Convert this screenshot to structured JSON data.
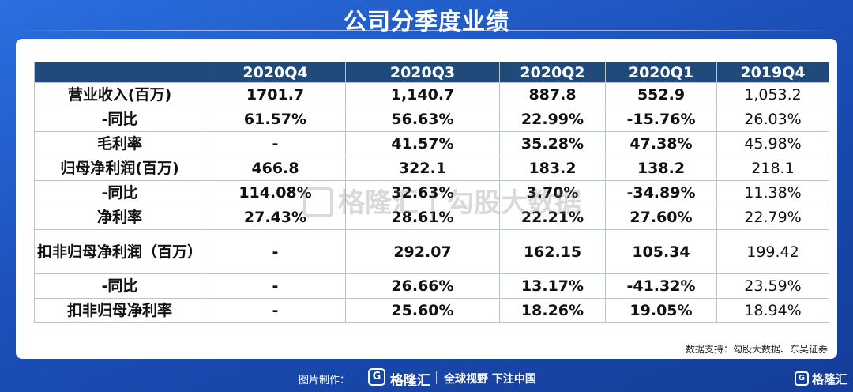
{
  "title": "公司分季度业绩",
  "table": {
    "headers": [
      "",
      "2020Q4",
      "2020Q3",
      "2020Q2",
      "2020Q1",
      "2019Q4"
    ],
    "rows": [
      {
        "label": "营业收入(百万)",
        "values": [
          "1701.7",
          "1,140.7",
          "887.8",
          "552.9",
          "1,053.2"
        ]
      },
      {
        "label": "-同比",
        "values": [
          "61.57%",
          "56.63%",
          "22.99%",
          "-15.76%",
          "26.03%"
        ]
      },
      {
        "label": "毛利率",
        "values": [
          "-",
          "41.57%",
          "35.28%",
          "47.38%",
          "45.98%"
        ]
      },
      {
        "label": "归母净利润(百万)",
        "values": [
          "466.8",
          "322.1",
          "183.2",
          "138.2",
          "218.1"
        ]
      },
      {
        "label": "-同比",
        "values": [
          "114.08%",
          "32.63%",
          "3.70%",
          "-34.89%",
          "11.38%"
        ]
      },
      {
        "label": "净利率",
        "values": [
          "27.43%",
          "28.61%",
          "22.21%",
          "27.60%",
          "22.79%"
        ]
      },
      {
        "label": "扣非归母净利润（百万）",
        "values": [
          "-",
          "292.07",
          "162.15",
          "105.34",
          "199.42"
        ]
      },
      {
        "label": "-同比",
        "values": [
          "-",
          "26.66%",
          "13.17%",
          "-41.32%",
          "23.59%"
        ]
      },
      {
        "label": "扣非归母净利率",
        "values": [
          "-",
          "25.60%",
          "18.26%",
          "19.05%",
          "18.94%"
        ]
      }
    ]
  },
  "source": "数据支持：勾股大数据、东吴证券",
  "watermark": "格隆汇 | 勾股大数据",
  "footer": {
    "made_by": "图片制作：",
    "brand": "格隆汇",
    "slogan": "全球视野 下注中国"
  },
  "corner_brand": "格隆汇"
}
